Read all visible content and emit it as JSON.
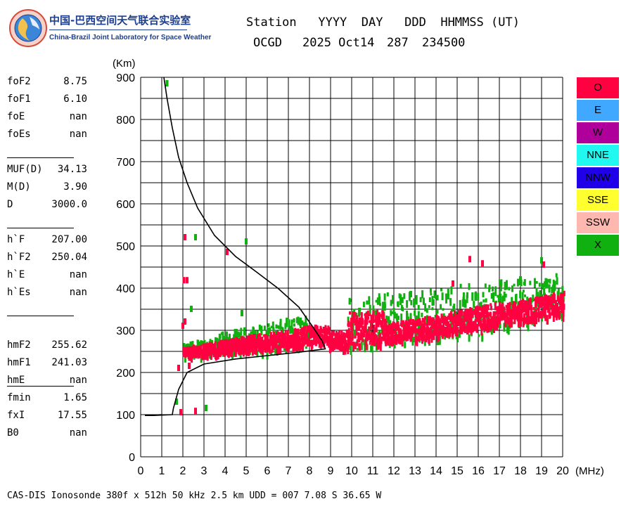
{
  "logo": {
    "cn": "中国-巴西空间天气联合实验室",
    "en": "China-Brazil Joint Laboratory for Space Weather"
  },
  "header": {
    "line1": "Station   YYYY  DAY   DDD  HHMMSS (UT)",
    "station": "OCGD",
    "date": "2025 Oct14",
    "day": "287",
    "time": "234500"
  },
  "params": [
    {
      "label": "foF2",
      "value": "8.75"
    },
    {
      "label": "foF1",
      "value": "6.10"
    },
    {
      "label": "foE",
      "value": "nan"
    },
    {
      "label": "foEs",
      "value": "nan"
    },
    {
      "label": "MUF(D)",
      "value": "34.13"
    },
    {
      "label": "M(D)",
      "value": "3.90"
    },
    {
      "label": "D",
      "value": "3000.0"
    },
    {
      "label": "h`F",
      "value": "207.00"
    },
    {
      "label": "h`F2",
      "value": "250.04"
    },
    {
      "label": "h`E",
      "value": "nan"
    },
    {
      "label": "h`Es",
      "value": "nan"
    },
    {
      "label": "hmF2",
      "value": "255.62"
    },
    {
      "label": "hmF1",
      "value": "241.03"
    },
    {
      "label": "hmE",
      "value": "nan"
    },
    {
      "label": "fmin",
      "value": "1.65"
    },
    {
      "label": "fxI",
      "value": "17.55"
    },
    {
      "label": "B0",
      "value": "nan"
    }
  ],
  "legend": [
    {
      "label": "O",
      "color": "#ff0040",
      "text_color": "#000000"
    },
    {
      "label": "E",
      "color": "#40a8ff",
      "text_color": "#000000"
    },
    {
      "label": "W",
      "color": "#b0009c",
      "text_color": "#000000"
    },
    {
      "label": "NNE",
      "color": "#20f8f0",
      "text_color": "#000000"
    },
    {
      "label": "NNW",
      "color": "#2000e8",
      "text_color": "#000000"
    },
    {
      "label": "SSE",
      "color": "#ffff30",
      "text_color": "#000000"
    },
    {
      "label": "SSW",
      "color": "#ffb8b0",
      "text_color": "#000000"
    },
    {
      "label": "X",
      "color": "#10b010",
      "text_color": "#000000"
    }
  ],
  "footer": "CAS-DIS Ionosonde 380f x 512h 50 kHz 2.5 km UDD = 007 7.08 S 36.65 W",
  "chart_data": {
    "type": "scatter",
    "title": "",
    "xlabel": "(MHz)",
    "ylabel": "(Km)",
    "xlim": [
      0,
      20
    ],
    "ylim": [
      0,
      900
    ],
    "xticks": [
      "0",
      "1",
      "2",
      "3",
      "4",
      "5",
      "6",
      "7",
      "8",
      "9",
      "10",
      "11",
      "12",
      "13",
      "14",
      "15",
      "16",
      "17",
      "18",
      "19",
      "20"
    ],
    "yticks": [
      "0",
      "100",
      "200",
      "300",
      "400",
      "500",
      "600",
      "700",
      "800",
      "900"
    ],
    "grid": true,
    "colors": {
      "O": "#ff0040",
      "X": "#10b010",
      "profile": "#000000"
    },
    "series": [
      {
        "name": "O",
        "trace_bands": [
          {
            "x": [
              2.0,
              3.5,
              5.0,
              6.5,
              8.0,
              8.9
            ],
            "y_low": [
              245,
              250,
              256,
              262,
              270,
              278
            ],
            "y_high": [
              262,
              275,
              290,
              300,
              315,
              312
            ]
          },
          {
            "x": [
              8.9,
              9.8
            ],
            "y_low": [
              258,
              262
            ],
            "y_high": [
              300,
              305
            ]
          },
          {
            "x": [
              9.8,
              11.6
            ],
            "y_low": [
              268,
              272
            ],
            "y_high": [
              345,
              350
            ]
          },
          {
            "x": [
              11.6,
              14.0
            ],
            "y_low": [
              278,
              290
            ],
            "y_high": [
              320,
              338
            ]
          },
          {
            "x": [
              14.0,
              17.0
            ],
            "y_low": [
              292,
              318
            ],
            "y_high": [
              340,
              370
            ]
          },
          {
            "x": [
              17.0,
              20.0
            ],
            "y_low": [
              320,
              340
            ],
            "y_high": [
              365,
              395
            ]
          }
        ],
        "scattered": [
          [
            2.1,
            520
          ],
          [
            2.05,
            418
          ],
          [
            2.2,
            418
          ],
          [
            4.1,
            485
          ],
          [
            2.1,
            320
          ],
          [
            2.0,
            310
          ],
          [
            1.8,
            210
          ],
          [
            2.3,
            215
          ],
          [
            2.6,
            108
          ],
          [
            1.9,
            105
          ],
          [
            15.6,
            468
          ],
          [
            16.2,
            458
          ],
          [
            19.1,
            455
          ],
          [
            14.8,
            410
          ]
        ]
      },
      {
        "name": "X",
        "trace_bands": [
          {
            "x": [
              2.0,
              4.0,
              6.0,
              8.0
            ],
            "y_low": [
              240,
              245,
              252,
              262
            ],
            "y_high": [
              270,
              300,
              320,
              345
            ]
          },
          {
            "x": [
              9.8,
              12.0,
              16.0,
              20.0
            ],
            "y_low": [
              255,
              270,
              290,
              335
            ],
            "y_high": [
              385,
              395,
              415,
              440
            ]
          }
        ],
        "scattered": [
          [
            1.25,
            885
          ],
          [
            5.0,
            510
          ],
          [
            2.6,
            520
          ],
          [
            1.7,
            130
          ],
          [
            3.1,
            115
          ],
          [
            2.4,
            350
          ],
          [
            4.8,
            340
          ],
          [
            12.8,
            385
          ],
          [
            18.0,
            420
          ],
          [
            19.0,
            465
          ]
        ]
      },
      {
        "name": "profile",
        "x": [
          1.0,
          0.2,
          0.6,
          1.5,
          1.55,
          1.8,
          2.2,
          3.0,
          4.5,
          6.0,
          7.5,
          8.75,
          8.6,
          8.2,
          7.5,
          6.5,
          5.5,
          4.5,
          3.5,
          2.7,
          2.2,
          1.8,
          1.5,
          1.25,
          1.1
        ],
        "y": [
          100,
          98,
          98,
          100,
          115,
          160,
          200,
          220,
          232,
          240,
          248,
          256,
          275,
          305,
          355,
          400,
          438,
          475,
          525,
          590,
          650,
          710,
          780,
          850,
          900
        ]
      }
    ]
  }
}
